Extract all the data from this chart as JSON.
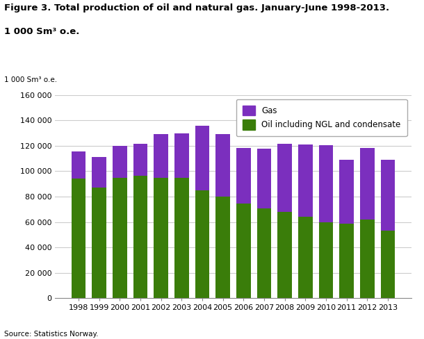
{
  "years": [
    "1998",
    "1999",
    "2000",
    "2001",
    "2002",
    "2003",
    "2004",
    "2005",
    "2006",
    "2007",
    "2008",
    "2009",
    "2010",
    "2011",
    "2012",
    "2013"
  ],
  "oil_values": [
    94000,
    87000,
    95000,
    96500,
    95000,
    95000,
    85000,
    80000,
    74500,
    71000,
    68000,
    64000,
    60000,
    58500,
    62000,
    53000
  ],
  "gas_values": [
    21500,
    24000,
    25000,
    25000,
    34000,
    35000,
    51000,
    49000,
    44000,
    47000,
    53500,
    57000,
    60500,
    50500,
    56500,
    56000
  ],
  "oil_color": "#3a7d0a",
  "gas_color": "#7b2fbe",
  "title_line1": "Figure 3. Total production of oil and natural gas. January-June 1998-2013.",
  "title_line2": "1 000 Sm³ o.e.",
  "axis_label": "1 000 Sm³ o.e.",
  "ylim": [
    0,
    160000
  ],
  "yticks": [
    0,
    20000,
    40000,
    60000,
    80000,
    100000,
    120000,
    140000,
    160000
  ],
  "ytick_labels": [
    "0",
    "20 000",
    "40 000",
    "60 000",
    "80 000",
    "100 000",
    "120 000",
    "140 000",
    "160 000"
  ],
  "legend_labels": [
    "Gas",
    "Oil including NGL and condensate"
  ],
  "source": "Source: Statistics Norway.",
  "background_color": "#ffffff",
  "grid_color": "#cccccc"
}
